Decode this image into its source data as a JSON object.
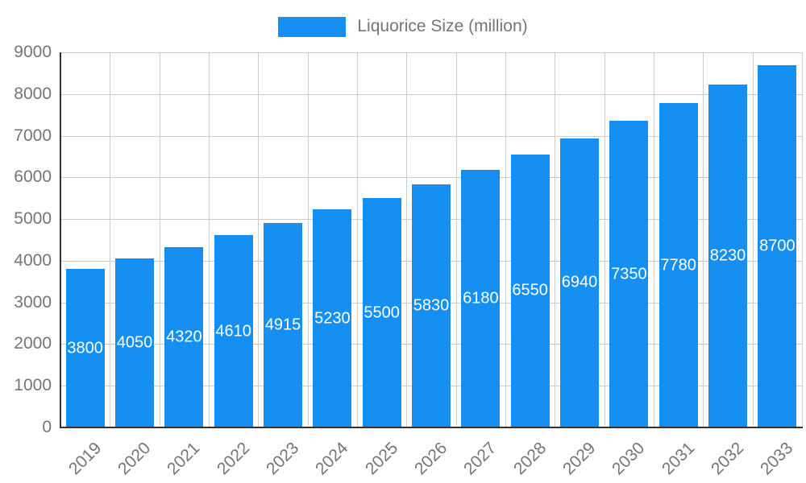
{
  "chart_data": {
    "type": "bar",
    "title": "",
    "legend": {
      "label": "Liquorice Size (million)",
      "position": "top"
    },
    "categories": [
      "2019",
      "2020",
      "2021",
      "2022",
      "2023",
      "2024",
      "2025",
      "2026",
      "2027",
      "2028",
      "2029",
      "2030",
      "2031",
      "2032",
      "2033"
    ],
    "series": [
      {
        "name": "Liquorice Size (million)",
        "values": [
          3800,
          4050,
          4320,
          4610,
          4915,
          5230,
          5500,
          5830,
          6180,
          6550,
          6940,
          7350,
          7780,
          8230,
          8700
        ]
      }
    ],
    "xlabel": "",
    "ylabel": "",
    "ylim": [
      0,
      9000
    ],
    "ytick_step": 1000,
    "grid": true,
    "data_labels": {
      "visible": true,
      "position": "middle"
    }
  },
  "colors": {
    "bar": "#1590f2",
    "gridline": "#cccccc",
    "axis_line": "#333333",
    "tick_text": "#757575",
    "data_label_text": "#ffffff",
    "background": "#ffffff"
  }
}
